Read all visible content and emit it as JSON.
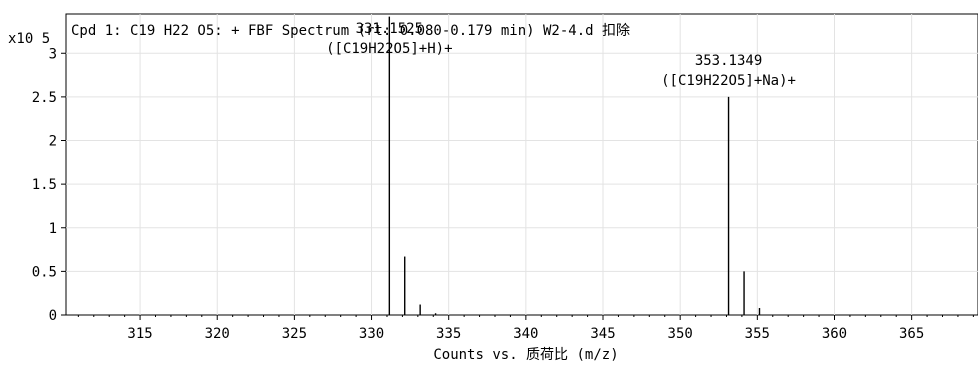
{
  "chart_data": {
    "type": "bar",
    "title": "Cpd 1: C19 H22 O5: + FBF Spectrum (rt: 0.080-0.179 min) W2-4.d  扣除",
    "xlabel": "Counts vs. 质荷比 (m/z)",
    "y_multiplier_label": "x10 5",
    "xlim": [
      310.2,
      369.3
    ],
    "ylim": [
      0,
      3.45
    ],
    "x_ticks": [
      315,
      320,
      325,
      330,
      335,
      340,
      345,
      350,
      355,
      360,
      365
    ],
    "x_tick_labels": [
      "315",
      "320",
      "325",
      "330",
      "335",
      "340",
      "345",
      "350",
      "355",
      "360",
      "365"
    ],
    "y_ticks": [
      0,
      0.5,
      1,
      1.5,
      2,
      2.5,
      3
    ],
    "y_tick_labels": [
      "0",
      "0.5",
      "1",
      "1.5",
      "2",
      "2.5",
      "3"
    ],
    "grid": true,
    "series": [
      {
        "peaks": [
          {
            "x": 331.1525,
            "y": 3.42
          },
          {
            "x": 332.15,
            "y": 0.67
          },
          {
            "x": 333.15,
            "y": 0.12
          },
          {
            "x": 334.15,
            "y": 0.02
          },
          {
            "x": 353.1349,
            "y": 2.5
          },
          {
            "x": 354.14,
            "y": 0.5
          },
          {
            "x": 355.14,
            "y": 0.08
          }
        ]
      }
    ],
    "annotations": [
      {
        "x": 331.1525,
        "y": 3.42,
        "lines": [
          "331.1525",
          "([C19H22O5]+H)+"
        ]
      },
      {
        "x": 353.1349,
        "y": 2.5,
        "lines": [
          "353.1349",
          "([C19H22O5]+Na)+"
        ]
      }
    ]
  }
}
